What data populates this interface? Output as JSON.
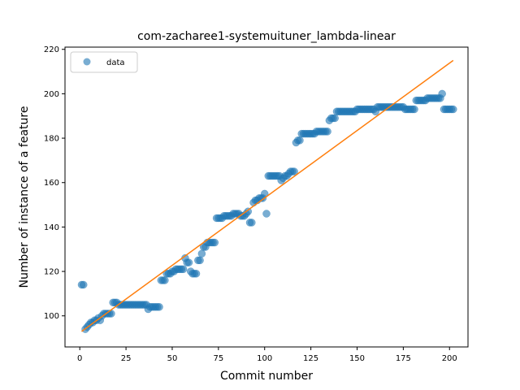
{
  "chart_data": {
    "type": "scatter",
    "title": "com-zacharee1-systemuituner_lambda-linear",
    "xlabel": "Commit number",
    "ylabel": "Number of instance of a feature",
    "xlim": [
      -8,
      210
    ],
    "ylim": [
      86,
      221
    ],
    "xticks": [
      0,
      25,
      50,
      75,
      100,
      125,
      150,
      175,
      200
    ],
    "yticks": [
      100,
      120,
      140,
      160,
      180,
      200,
      220
    ],
    "grid": false,
    "legend": {
      "placement": "top-left",
      "entries": [
        "data"
      ]
    },
    "series": [
      {
        "name": "data",
        "kind": "scatter",
        "color": "#1f77b4",
        "points": [
          [
            1,
            114
          ],
          [
            2,
            114
          ],
          [
            3,
            94
          ],
          [
            4,
            95
          ],
          [
            5,
            96
          ],
          [
            6,
            97
          ],
          [
            7,
            97
          ],
          [
            8,
            98
          ],
          [
            9,
            98
          ],
          [
            10,
            99
          ],
          [
            11,
            98
          ],
          [
            12,
            100
          ],
          [
            13,
            101
          ],
          [
            14,
            101
          ],
          [
            15,
            101
          ],
          [
            16,
            101
          ],
          [
            17,
            101
          ],
          [
            18,
            106
          ],
          [
            19,
            106
          ],
          [
            20,
            106
          ],
          [
            21,
            105
          ],
          [
            22,
            105
          ],
          [
            23,
            105
          ],
          [
            24,
            105
          ],
          [
            25,
            105
          ],
          [
            26,
            105
          ],
          [
            27,
            105
          ],
          [
            28,
            105
          ],
          [
            29,
            105
          ],
          [
            30,
            105
          ],
          [
            31,
            105
          ],
          [
            32,
            105
          ],
          [
            33,
            105
          ],
          [
            34,
            105
          ],
          [
            35,
            105
          ],
          [
            36,
            105
          ],
          [
            37,
            103
          ],
          [
            38,
            104
          ],
          [
            39,
            104
          ],
          [
            40,
            104
          ],
          [
            41,
            104
          ],
          [
            42,
            104
          ],
          [
            43,
            104
          ],
          [
            44,
            116
          ],
          [
            45,
            116
          ],
          [
            46,
            116
          ],
          [
            47,
            119
          ],
          [
            48,
            119
          ],
          [
            49,
            119
          ],
          [
            50,
            120
          ],
          [
            51,
            120
          ],
          [
            52,
            121
          ],
          [
            53,
            121
          ],
          [
            54,
            121
          ],
          [
            55,
            121
          ],
          [
            56,
            121
          ],
          [
            57,
            126
          ],
          [
            58,
            124
          ],
          [
            59,
            124
          ],
          [
            60,
            120
          ],
          [
            61,
            119
          ],
          [
            62,
            119
          ],
          [
            63,
            119
          ],
          [
            64,
            125
          ],
          [
            65,
            125
          ],
          [
            66,
            128
          ],
          [
            67,
            131
          ],
          [
            68,
            131
          ],
          [
            69,
            133
          ],
          [
            70,
            133
          ],
          [
            71,
            133
          ],
          [
            72,
            133
          ],
          [
            73,
            133
          ],
          [
            74,
            144
          ],
          [
            75,
            144
          ],
          [
            76,
            144
          ],
          [
            77,
            144
          ],
          [
            78,
            145
          ],
          [
            79,
            145
          ],
          [
            80,
            145
          ],
          [
            81,
            145
          ],
          [
            82,
            145
          ],
          [
            83,
            146
          ],
          [
            84,
            146
          ],
          [
            85,
            146
          ],
          [
            86,
            146
          ],
          [
            87,
            145
          ],
          [
            88,
            145
          ],
          [
            89,
            145
          ],
          [
            90,
            146
          ],
          [
            91,
            147
          ],
          [
            92,
            142
          ],
          [
            93,
            142
          ],
          [
            94,
            151
          ],
          [
            95,
            152
          ],
          [
            96,
            152
          ],
          [
            97,
            153
          ],
          [
            98,
            153
          ],
          [
            99,
            153
          ],
          [
            100,
            155
          ],
          [
            101,
            146
          ],
          [
            102,
            163
          ],
          [
            103,
            163
          ],
          [
            104,
            163
          ],
          [
            105,
            163
          ],
          [
            106,
            163
          ],
          [
            107,
            163
          ],
          [
            108,
            163
          ],
          [
            109,
            161
          ],
          [
            110,
            162
          ],
          [
            111,
            163
          ],
          [
            112,
            163
          ],
          [
            113,
            164
          ],
          [
            114,
            165
          ],
          [
            115,
            165
          ],
          [
            116,
            165
          ],
          [
            117,
            178
          ],
          [
            118,
            179
          ],
          [
            119,
            179
          ],
          [
            120,
            182
          ],
          [
            121,
            182
          ],
          [
            122,
            182
          ],
          [
            123,
            182
          ],
          [
            124,
            182
          ],
          [
            125,
            182
          ],
          [
            126,
            182
          ],
          [
            127,
            182
          ],
          [
            128,
            183
          ],
          [
            129,
            183
          ],
          [
            130,
            183
          ],
          [
            131,
            183
          ],
          [
            132,
            183
          ],
          [
            133,
            183
          ],
          [
            134,
            183
          ],
          [
            135,
            188
          ],
          [
            136,
            189
          ],
          [
            137,
            189
          ],
          [
            138,
            189
          ],
          [
            139,
            192
          ],
          [
            140,
            192
          ],
          [
            141,
            192
          ],
          [
            142,
            192
          ],
          [
            143,
            192
          ],
          [
            144,
            192
          ],
          [
            145,
            192
          ],
          [
            146,
            192
          ],
          [
            147,
            192
          ],
          [
            148,
            192
          ],
          [
            149,
            192
          ],
          [
            150,
            193
          ],
          [
            151,
            193
          ],
          [
            152,
            193
          ],
          [
            153,
            193
          ],
          [
            154,
            193
          ],
          [
            155,
            193
          ],
          [
            156,
            193
          ],
          [
            157,
            193
          ],
          [
            158,
            193
          ],
          [
            159,
            193
          ],
          [
            160,
            192
          ],
          [
            161,
            194
          ],
          [
            162,
            194
          ],
          [
            163,
            194
          ],
          [
            164,
            194
          ],
          [
            165,
            194
          ],
          [
            166,
            194
          ],
          [
            167,
            194
          ],
          [
            168,
            194
          ],
          [
            169,
            194
          ],
          [
            170,
            194
          ],
          [
            171,
            194
          ],
          [
            172,
            194
          ],
          [
            173,
            194
          ],
          [
            174,
            194
          ],
          [
            175,
            194
          ],
          [
            176,
            193
          ],
          [
            177,
            193
          ],
          [
            178,
            193
          ],
          [
            179,
            193
          ],
          [
            180,
            193
          ],
          [
            181,
            193
          ],
          [
            182,
            197
          ],
          [
            183,
            197
          ],
          [
            184,
            197
          ],
          [
            185,
            197
          ],
          [
            186,
            197
          ],
          [
            187,
            197
          ],
          [
            188,
            198
          ],
          [
            189,
            198
          ],
          [
            190,
            198
          ],
          [
            191,
            198
          ],
          [
            192,
            198
          ],
          [
            193,
            198
          ],
          [
            194,
            198
          ],
          [
            195,
            198
          ],
          [
            196,
            200
          ],
          [
            197,
            193
          ],
          [
            198,
            193
          ],
          [
            199,
            193
          ],
          [
            200,
            193
          ],
          [
            201,
            193
          ],
          [
            202,
            193
          ]
        ]
      },
      {
        "name": "",
        "kind": "line",
        "color": "#ff7f0e",
        "points": [
          [
            1,
            93
          ],
          [
            202,
            215
          ]
        ]
      }
    ]
  }
}
